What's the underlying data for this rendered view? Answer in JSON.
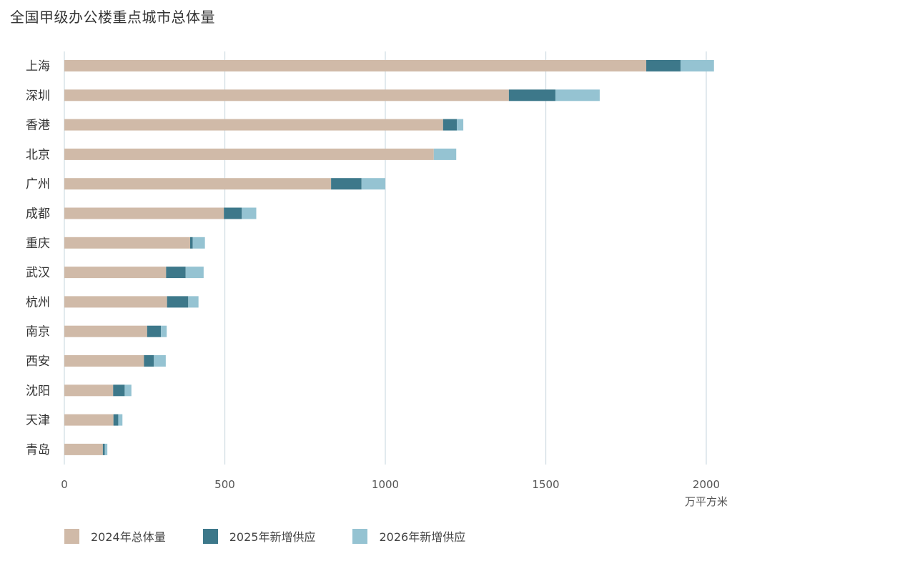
{
  "chart_data": {
    "type": "bar",
    "orientation": "horizontal",
    "stacked": true,
    "title": "全国甲级办公楼重点城市总体量",
    "unit_label": "万平方米",
    "categories": [
      "上海",
      "深圳",
      "香港",
      "北京",
      "广州",
      "成都",
      "重庆",
      "武汉",
      "杭州",
      "南京",
      "西安",
      "沈阳",
      "天津",
      "青岛"
    ],
    "series": [
      {
        "name": "2024年总体量",
        "color": "#D0BAA8",
        "values": [
          1813,
          1385,
          1180,
          1151,
          831,
          497,
          392,
          317,
          320,
          258,
          248,
          152,
          153,
          120
        ]
      },
      {
        "name": "2025年新增供应",
        "color": "#3D788A",
        "values": [
          107,
          145,
          43,
          0,
          95,
          56,
          8,
          61,
          66,
          43,
          31,
          36,
          15,
          6
        ]
      },
      {
        "name": "2026年新增供应",
        "color": "#95C3D2",
        "values": [
          104,
          138,
          20,
          70,
          74,
          45,
          38,
          56,
          32,
          18,
          37,
          21,
          13,
          8
        ]
      }
    ],
    "x_ticks": [
      0,
      500,
      1000,
      1500,
      2000
    ],
    "xlim": [
      0,
      2000
    ],
    "grid": "vertical",
    "legend_position": "bottom-left"
  }
}
